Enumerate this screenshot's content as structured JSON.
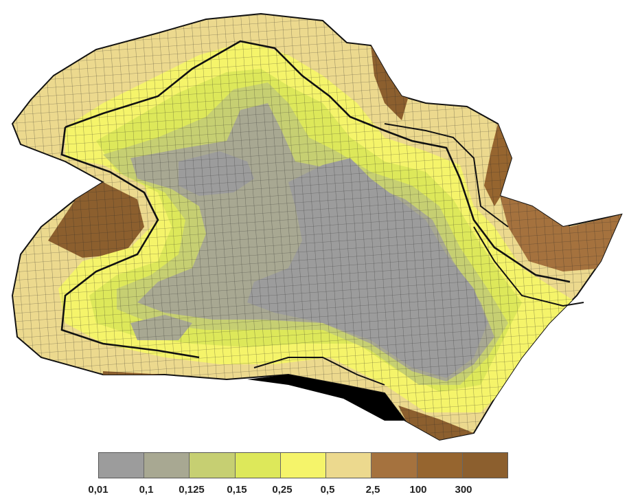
{
  "figure": {
    "legend": {
      "swatches": [
        {
          "color": "#9c9c9c"
        },
        {
          "color": "#a8a892"
        },
        {
          "color": "#c6cf72"
        },
        {
          "color": "#dde85a"
        },
        {
          "color": "#f5f46a"
        },
        {
          "color": "#ecd98e"
        },
        {
          "color": "#a5723e"
        },
        {
          "color": "#96652f"
        },
        {
          "color": "#8c5f2e"
        }
      ],
      "labels": [
        "0,01",
        "0,1",
        "0,125",
        "0,15",
        "0,25",
        "0,5",
        "2,5",
        "100",
        "300"
      ]
    },
    "colors": {
      "outline": "#111111",
      "grid": "#222222"
    }
  }
}
